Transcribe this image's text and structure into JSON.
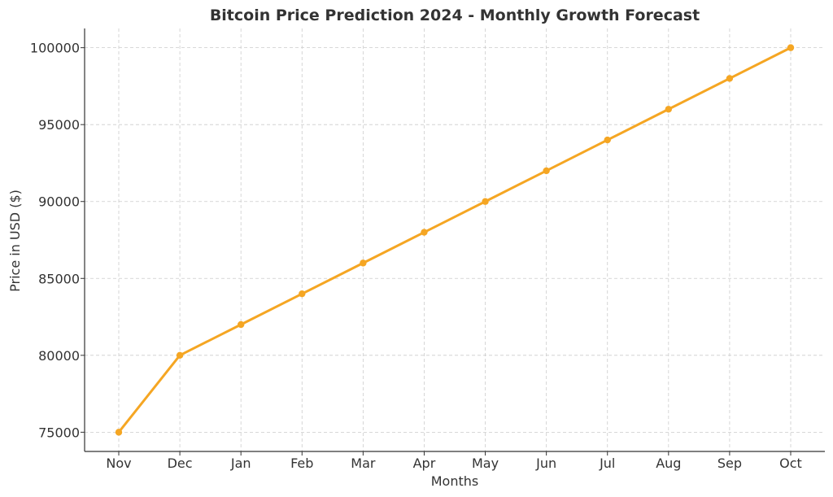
{
  "chart_data": {
    "type": "line",
    "title": "Bitcoin Price Prediction 2024 - Monthly Growth Forecast",
    "xlabel": "Months",
    "ylabel": "Price in USD ($)",
    "categories": [
      "Nov",
      "Dec",
      "Jan",
      "Feb",
      "Mar",
      "Apr",
      "May",
      "Jun",
      "Jul",
      "Aug",
      "Sep",
      "Oct"
    ],
    "series": [
      {
        "values": [
          75000,
          80000,
          82000,
          84000,
          86000,
          88000,
          90000,
          92000,
          94000,
          96000,
          98000,
          100000
        ],
        "color": "#f5a623"
      }
    ],
    "yticks": [
      75000,
      80000,
      85000,
      90000,
      95000,
      100000
    ],
    "ylim": [
      73750,
      101250
    ],
    "grid": true
  }
}
